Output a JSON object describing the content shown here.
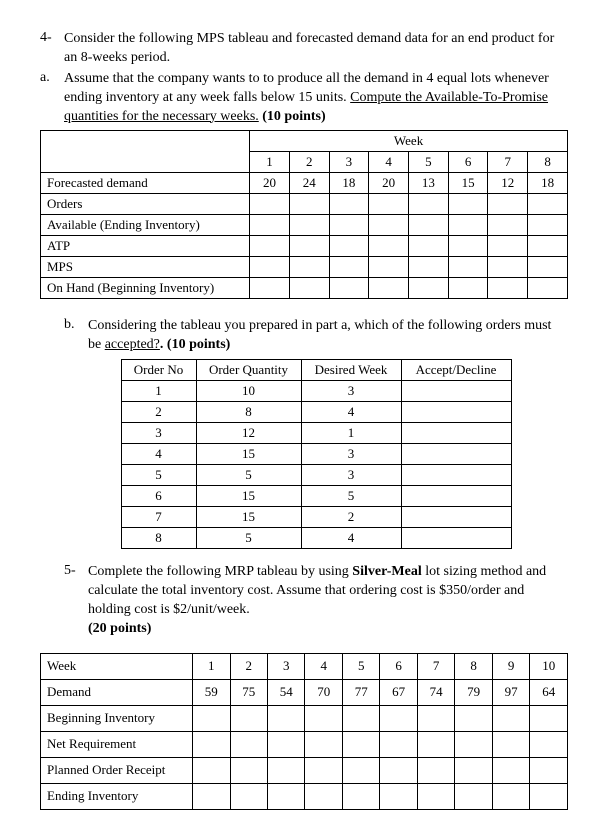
{
  "q4": {
    "num": "4-",
    "text": "Consider the following MPS tableau and forecasted demand data for an end product for an 8-weeks period.",
    "a": {
      "num": "a.",
      "text": "Assume that the company wants to to produce all the demand in 4 equal lots whenever ending inventory at any week falls below 15 units. ",
      "underlined": "Compute the Available-To-Promise quantities for the necessary weeks.",
      "points": " (10 points)"
    },
    "mps": {
      "weekHeader": "Week",
      "weeks": [
        "1",
        "2",
        "3",
        "4",
        "5",
        "6",
        "7",
        "8"
      ],
      "rows": [
        {
          "label": "Forecasted demand",
          "vals": [
            "20",
            "24",
            "18",
            "20",
            "13",
            "15",
            "12",
            "18"
          ]
        },
        {
          "label": "Orders",
          "vals": [
            "",
            "",
            "",
            "",
            "",
            "",
            "",
            ""
          ]
        },
        {
          "label": "Available (Ending Inventory)",
          "vals": [
            "",
            "",
            "",
            "",
            "",
            "",
            "",
            ""
          ]
        },
        {
          "label": "ATP",
          "vals": [
            "",
            "",
            "",
            "",
            "",
            "",
            "",
            ""
          ]
        },
        {
          "label": "MPS",
          "vals": [
            "",
            "",
            "",
            "",
            "",
            "",
            "",
            ""
          ]
        },
        {
          "label": "On Hand (Beginning Inventory)",
          "vals": [
            "",
            "",
            "",
            "",
            "",
            "",
            "",
            ""
          ]
        }
      ]
    },
    "b": {
      "num": "b.",
      "text": "Considering the tableau you prepared in part a, which of the following orders must be ",
      "underlined": "accepted?",
      "points": ". (10 points)"
    },
    "orders": {
      "headers": [
        "Order No",
        "Order Quantity",
        "Desired Week",
        "Accept/Decline"
      ],
      "rows": [
        [
          "1",
          "10",
          "3",
          ""
        ],
        [
          "2",
          "8",
          "4",
          ""
        ],
        [
          "3",
          "12",
          "1",
          ""
        ],
        [
          "4",
          "15",
          "3",
          ""
        ],
        [
          "5",
          "5",
          "3",
          ""
        ],
        [
          "6",
          "15",
          "5",
          ""
        ],
        [
          "7",
          "15",
          "2",
          ""
        ],
        [
          "8",
          "5",
          "4",
          ""
        ]
      ]
    }
  },
  "q5": {
    "num": "5-",
    "text_a": "Complete the following MRP tableau by using ",
    "bold": "Silver-Meal",
    "text_b": " lot sizing method and calculate the total inventory cost. Assume that ordering cost is $350/order and holding cost is $2/unit/week.",
    "points": "(20 points)",
    "mrp": {
      "weekLabel": "Week",
      "weeks": [
        "1",
        "2",
        "3",
        "4",
        "5",
        "6",
        "7",
        "8",
        "9",
        "10"
      ],
      "rows": [
        {
          "label": "Demand",
          "vals": [
            "59",
            "75",
            "54",
            "70",
            "77",
            "67",
            "74",
            "79",
            "97",
            "64"
          ]
        },
        {
          "label": "Beginning Inventory",
          "vals": [
            "",
            "",
            "",
            "",
            "",
            "",
            "",
            "",
            "",
            ""
          ]
        },
        {
          "label": "Net Requirement",
          "vals": [
            "",
            "",
            "",
            "",
            "",
            "",
            "",
            "",
            "",
            ""
          ]
        },
        {
          "label": "Planned Order Receipt",
          "vals": [
            "",
            "",
            "",
            "",
            "",
            "",
            "",
            "",
            "",
            ""
          ]
        },
        {
          "label": "Ending Inventory",
          "vals": [
            "",
            "",
            "",
            "",
            "",
            "",
            "",
            "",
            "",
            ""
          ]
        }
      ]
    }
  }
}
